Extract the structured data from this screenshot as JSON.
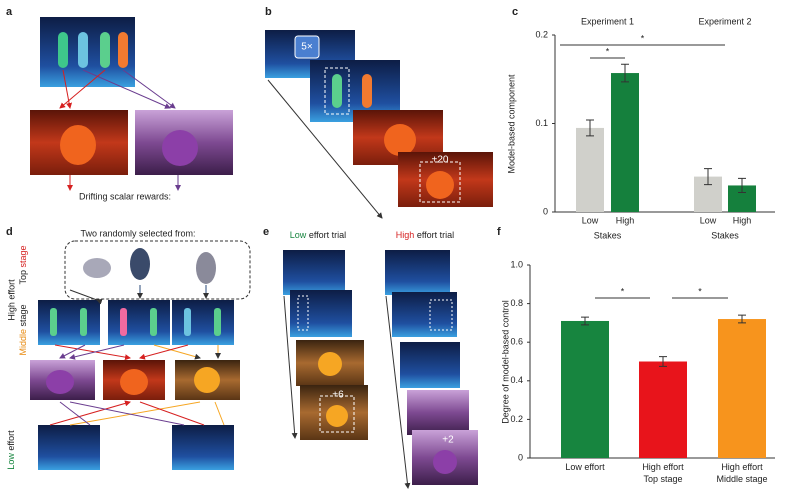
{
  "panels": {
    "a": {
      "label": "a",
      "caption": "Drifting scalar rewards:"
    },
    "b": {
      "label": "b",
      "count": "5×",
      "reward": "+20"
    },
    "d": {
      "label": "d",
      "heading": "Two randomly selected from:",
      "high": "High effort",
      "top": [
        "Top",
        "stage"
      ],
      "middle": [
        "Middle",
        "stage"
      ],
      "low": [
        "Low",
        "effort"
      ]
    },
    "e": {
      "label": "e",
      "low_trial": [
        "Low",
        "effort trial"
      ],
      "high_trial": [
        "High",
        "effort trial"
      ],
      "low_reward": "+6",
      "high_reward": "+2"
    },
    "c": {
      "label": "c"
    },
    "f": {
      "label": "f"
    }
  },
  "chart_data": [
    {
      "type": "bar",
      "ylabel": "Model-based component",
      "group_labels": [
        "Experiment 1",
        "Experiment 2"
      ],
      "group_axis_labels": [
        "Stakes",
        "Stakes"
      ],
      "categories": [
        "Low",
        "High",
        "Low",
        "High"
      ],
      "values": [
        0.095,
        0.157,
        0.04,
        0.03
      ],
      "errors": [
        0.009,
        0.01,
        0.009,
        0.008
      ],
      "colors": [
        "#d0d0cb",
        "#15803d",
        "#d0d0cb",
        "#15803d"
      ],
      "ylim": [
        0,
        0.2
      ],
      "yticks": [
        0,
        0.1,
        0.2
      ],
      "annotations": [
        "*",
        "*"
      ]
    },
    {
      "type": "bar",
      "ylabel": "Degree of model-based control",
      "categories": [
        [
          "Low effort"
        ],
        [
          "High effort",
          "Top stage"
        ],
        [
          "High effort",
          "Middle stage"
        ]
      ],
      "values": [
        0.71,
        0.5,
        0.72
      ],
      "errors": [
        0.02,
        0.025,
        0.02
      ],
      "colors": [
        "#17853f",
        "#e8141b",
        "#f7941d"
      ],
      "ylim": [
        0,
        1
      ],
      "yticks": [
        0,
        0.2,
        0.4,
        0.6,
        0.8,
        {
          "value": 1,
          "label": "1.0"
        }
      ],
      "annotations": [
        "*",
        "*"
      ]
    }
  ]
}
